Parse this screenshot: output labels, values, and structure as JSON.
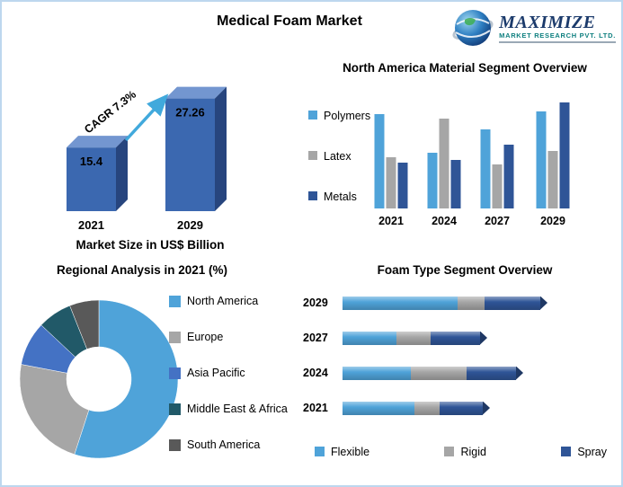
{
  "page": {
    "title": "Medical Foam Market",
    "logo": {
      "line1": "MAXIMIZE",
      "line2": "MARKET RESEARCH PVT. LTD."
    }
  },
  "colors": {
    "accent_blue": "#41A9DC",
    "bar_front": "#3B68B0",
    "bar_top": "#7396D0",
    "bar_side": "#27457E",
    "border": "#BDD7EE"
  },
  "chart_data": [
    {
      "id": "market-size",
      "type": "bar",
      "style": "3d",
      "title": "Market Size in US$ Billion",
      "categories": [
        "2021",
        "2029"
      ],
      "values": [
        15.4,
        27.26
      ],
      "annotation": "CAGR 7.3%",
      "ylim": [
        0,
        30
      ]
    },
    {
      "id": "material-segment",
      "type": "bar",
      "title": "North America Material Segment Overview",
      "categories": [
        "2021",
        "2024",
        "2027",
        "2029"
      ],
      "series": [
        {
          "name": "Polymers",
          "color": "#4FA3D9",
          "values": [
            105,
            62,
            88,
            108
          ]
        },
        {
          "name": "Latex",
          "color": "#A6A6A6",
          "values": [
            57,
            100,
            49,
            64
          ]
        },
        {
          "name": "Metals",
          "color": "#2F5597",
          "values": [
            51,
            54,
            71,
            118
          ]
        }
      ],
      "legend_position": "left",
      "ylim": [
        0,
        140
      ]
    },
    {
      "id": "regional-analysis",
      "type": "pie",
      "donut": true,
      "title": "Regional Analysis in 2021 (%)",
      "labels": [
        "North America",
        "Europe",
        "Asia Pacific",
        "Middle East & Africa",
        "South America"
      ],
      "values": [
        55,
        23,
        9,
        7,
        6
      ],
      "colors": [
        "#4FA3D9",
        "#A6A6A6",
        "#4472C4",
        "#215968",
        "#595959"
      ],
      "legend_position": "right"
    },
    {
      "id": "foam-type",
      "type": "bar",
      "orientation": "horizontal-stacked",
      "title": "Foam Type Segment Overview",
      "categories": [
        "2029",
        "2027",
        "2024",
        "2021"
      ],
      "series": [
        {
          "name": "Flexible",
          "color": "#4FA3D9",
          "values": [
            128,
            60,
            76,
            80
          ]
        },
        {
          "name": "Rigid",
          "color": "#A6A6A6",
          "values": [
            30,
            38,
            62,
            28
          ]
        },
        {
          "name": "Spray",
          "color": "#2F5597",
          "values": [
            62,
            55,
            55,
            48
          ]
        }
      ],
      "legend_position": "bottom"
    }
  ]
}
